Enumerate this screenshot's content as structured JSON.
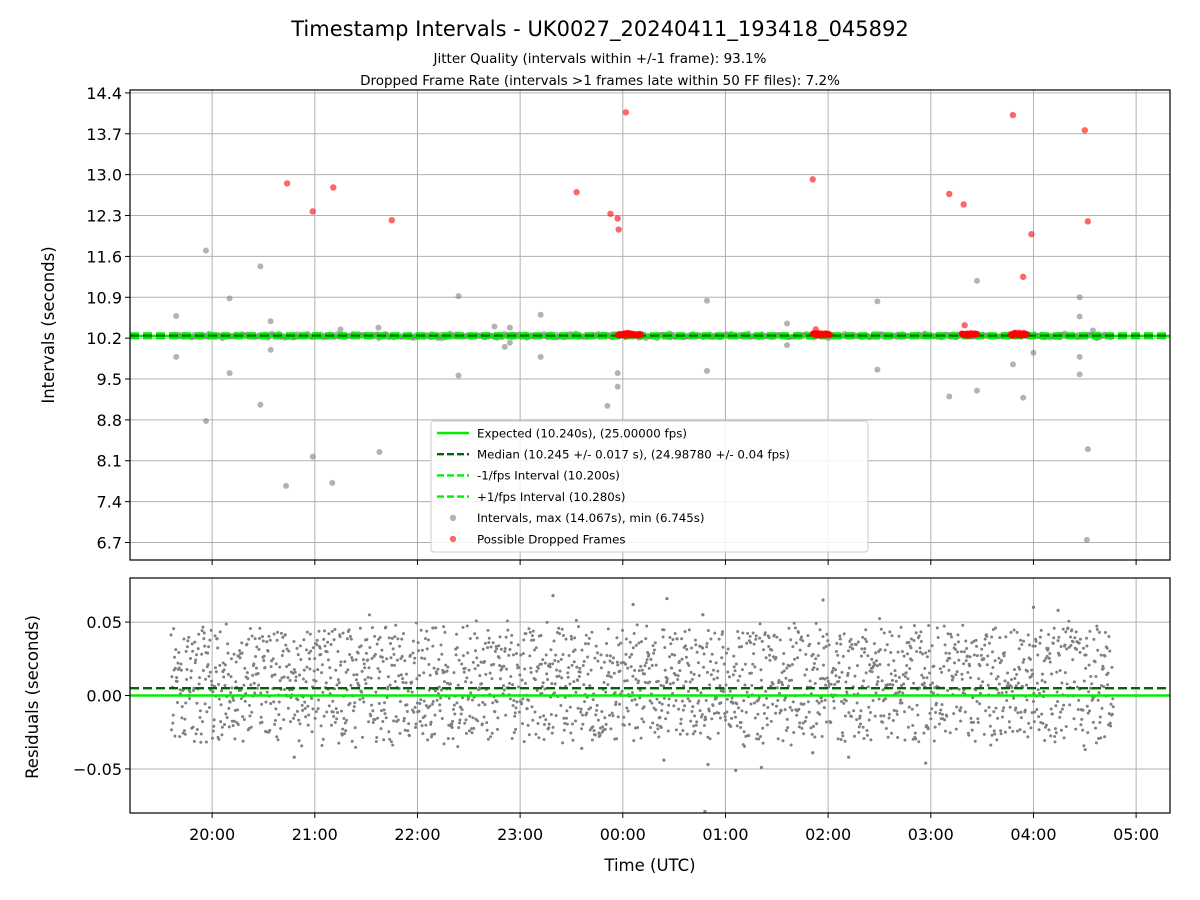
{
  "chart_data": [
    {
      "type": "scatter",
      "panel": "intervals",
      "title": "Timestamp Intervals - UK0027_20240411_193418_045892",
      "subtitle_1": "Jitter Quality (intervals within +/-1 frame): 93.1%",
      "subtitle_2": "Dropped Frame Rate (intervals >1 frames late within 50 FF files): 7.2%",
      "ylabel": "Intervals (seconds)",
      "xlabel": "",
      "xlim": [
        -4.8,
        5.33
      ],
      "ylim": [
        6.4,
        14.45
      ],
      "x_unit": "hours relative to 00:00 UTC",
      "grid": true,
      "yticks": [
        6.7,
        7.4,
        8.1,
        8.8,
        9.5,
        10.2,
        10.9,
        11.6,
        12.3,
        13.0,
        13.7,
        14.4
      ],
      "ytick_labels": [
        "6.7",
        "7.4",
        "8.1",
        "8.8",
        "9.5",
        "10.2",
        "10.9",
        "11.6",
        "12.3",
        "13.0",
        "13.7",
        "14.4"
      ],
      "lines": [
        {
          "name": "Expected (10.240s), (25.00000 fps)",
          "y": 10.24,
          "color": "#00ee00",
          "style": "solid"
        },
        {
          "name": "Median (10.245 +/- 0.017 s), (24.98780 +/- 0.04 fps)",
          "y": 10.245,
          "color": "#006400",
          "style": "dashed"
        },
        {
          "name": "-1/fps Interval (10.200s)",
          "y": 10.2,
          "color": "#00ee00",
          "style": "dashed"
        },
        {
          "name": "+1/fps Interval (10.280s)",
          "y": 10.28,
          "color": "#00ee00",
          "style": "dashed"
        }
      ],
      "legend": [
        {
          "label": "Expected (10.240s), (25.00000 fps)",
          "kind": "line-solid",
          "color": "#00ee00"
        },
        {
          "label": "Median (10.245 +/- 0.017 s), (24.98780 +/- 0.04 fps)",
          "kind": "line-dashed",
          "color": "#006400"
        },
        {
          "label": "-1/fps Interval (10.200s)",
          "kind": "line-dashed",
          "color": "#00ee00"
        },
        {
          "label": "+1/fps Interval (10.280s)",
          "kind": "line-dashed",
          "color": "#00ee00"
        },
        {
          "label": "Intervals, max (14.067s), min (6.745s)",
          "kind": "marker",
          "color": "#808080"
        },
        {
          "label": "Possible Dropped Frames",
          "kind": "marker",
          "color": "#ff0000"
        }
      ],
      "legend_location": "lower-center",
      "series": [
        {
          "name": "Intervals",
          "color": "#808080",
          "band": {
            "x_start": -4.38,
            "x_end": 4.77,
            "y_center": 10.24,
            "spread": 0.035
          },
          "outliers": [
            [
              -4.35,
              10.58
            ],
            [
              -4.35,
              9.88
            ],
            [
              -4.06,
              11.7
            ],
            [
              -4.06,
              8.78
            ],
            [
              -3.83,
              10.88
            ],
            [
              -3.83,
              9.6
            ],
            [
              -3.53,
              11.43
            ],
            [
              -3.53,
              9.06
            ],
            [
              -3.43,
              10.49
            ],
            [
              -3.43,
              10.0
            ],
            [
              -3.28,
              7.67
            ],
            [
              -3.02,
              8.17
            ],
            [
              -2.83,
              7.72
            ],
            [
              -2.75,
              10.35
            ],
            [
              -2.38,
              10.38
            ],
            [
              -2.37,
              8.25
            ],
            [
              -1.8,
              10.2
            ],
            [
              -1.6,
              10.92
            ],
            [
              -1.6,
              9.56
            ],
            [
              -1.25,
              10.4
            ],
            [
              -1.15,
              10.05
            ],
            [
              -1.1,
              10.38
            ],
            [
              -1.1,
              10.12
            ],
            [
              -0.8,
              10.6
            ],
            [
              -0.8,
              9.88
            ],
            [
              -0.15,
              9.04
            ],
            [
              -0.05,
              9.6
            ],
            [
              -0.05,
              9.37
            ],
            [
              0.82,
              10.84
            ],
            [
              0.82,
              9.64
            ],
            [
              1.6,
              10.45
            ],
            [
              1.6,
              10.08
            ],
            [
              2.48,
              10.83
            ],
            [
              2.48,
              9.66
            ],
            [
              3.18,
              9.2
            ],
            [
              3.45,
              11.18
            ],
            [
              3.45,
              9.3
            ],
            [
              3.8,
              9.75
            ],
            [
              3.9,
              9.18
            ],
            [
              4.0,
              9.95
            ],
            [
              4.45,
              10.9
            ],
            [
              4.45,
              10.57
            ],
            [
              4.45,
              9.88
            ],
            [
              4.45,
              9.58
            ],
            [
              4.52,
              6.745
            ],
            [
              4.53,
              8.3
            ],
            [
              4.58,
              10.33
            ],
            [
              4.62,
              10.2
            ]
          ]
        },
        {
          "name": "Possible Dropped Frames",
          "color": "#ff0000",
          "points": [
            [
              -3.27,
              12.85
            ],
            [
              -3.02,
              12.37
            ],
            [
              -2.82,
              12.78
            ],
            [
              -2.25,
              12.22
            ],
            [
              -0.45,
              12.7
            ],
            [
              -0.12,
              12.33
            ],
            [
              -0.05,
              12.25
            ],
            [
              -0.04,
              12.06
            ],
            [
              0.03,
              14.067
            ],
            [
              1.85,
              12.92
            ],
            [
              1.88,
              10.35
            ],
            [
              3.18,
              12.67
            ],
            [
              3.32,
              12.49
            ],
            [
              3.33,
              10.42
            ],
            [
              3.8,
              14.02
            ],
            [
              3.9,
              11.25
            ],
            [
              3.98,
              11.98
            ],
            [
              4.5,
              13.76
            ],
            [
              4.53,
              12.2
            ]
          ],
          "clusters": [
            {
              "x_start": -0.05,
              "x_end": 0.18,
              "y": 10.265
            },
            {
              "x_start": 1.85,
              "x_end": 2.02,
              "y": 10.265
            },
            {
              "x_start": 3.3,
              "x_end": 3.45,
              "y": 10.265
            },
            {
              "x_start": 3.78,
              "x_end": 3.94,
              "y": 10.265
            }
          ]
        }
      ]
    },
    {
      "type": "scatter",
      "panel": "residuals",
      "title": "",
      "xlabel": "Time (UTC)",
      "ylabel": "Residuals (seconds)",
      "xlim": [
        -4.8,
        5.33
      ],
      "ylim": [
        -0.08,
        0.08
      ],
      "grid": true,
      "yticks": [
        -0.05,
        0.0,
        0.05
      ],
      "ytick_labels": [
        "−0.05",
        "0.00",
        "0.05"
      ],
      "xticks": [
        -4,
        -3,
        -2,
        -1,
        0,
        1,
        2,
        3,
        4,
        5
      ],
      "xtick_labels": [
        "20:00",
        "21:00",
        "22:00",
        "23:00",
        "00:00",
        "01:00",
        "02:00",
        "03:00",
        "04:00",
        "05:00"
      ],
      "lines": [
        {
          "name": "Expected",
          "y": 0.0,
          "color": "#00ee00",
          "style": "solid"
        },
        {
          "name": "Median",
          "y": 0.005,
          "color": "#006400",
          "style": "dashed"
        }
      ],
      "series": [
        {
          "name": "Residuals",
          "color": "#808080",
          "band": {
            "x_start": -4.4,
            "x_end": 4.78,
            "y_center": 0.008,
            "spread": 0.055
          },
          "extremes": [
            [
              -0.68,
              0.068
            ],
            [
              -1.85,
              0.046
            ],
            [
              0.1,
              0.062
            ],
            [
              0.43,
              0.066
            ],
            [
              0.78,
              0.055
            ],
            [
              1.95,
              0.065
            ],
            [
              4.0,
              0.06
            ],
            [
              4.24,
              0.058
            ],
            [
              0.4,
              -0.044
            ],
            [
              0.83,
              -0.047
            ],
            [
              1.1,
              -0.051
            ],
            [
              1.35,
              -0.049
            ],
            [
              1.85,
              -0.039
            ],
            [
              2.2,
              -0.042
            ],
            [
              2.95,
              -0.046
            ],
            [
              0.8,
              -0.079
            ],
            [
              -3.2,
              -0.042
            ],
            [
              -0.4,
              -0.036
            ]
          ]
        }
      ]
    }
  ]
}
